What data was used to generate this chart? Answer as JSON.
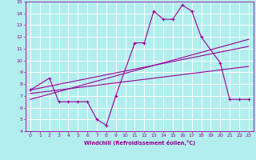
{
  "bg_color": "#b2eeee",
  "grid_color": "#ffffff",
  "line_color": "#990099",
  "xlim": [
    -0.5,
    23.5
  ],
  "ylim": [
    4,
    15
  ],
  "xticks": [
    0,
    1,
    2,
    3,
    4,
    5,
    6,
    7,
    8,
    9,
    10,
    11,
    12,
    13,
    14,
    15,
    16,
    17,
    18,
    19,
    20,
    21,
    22,
    23
  ],
  "yticks": [
    4,
    5,
    6,
    7,
    8,
    9,
    10,
    11,
    12,
    13,
    14,
    15
  ],
  "xlabel": "Windchill (Refroidissement éolien,°C)",
  "line1_x": [
    0,
    2,
    3,
    4,
    5,
    6,
    7,
    8,
    9,
    11,
    12,
    13,
    14,
    15,
    16,
    17,
    18,
    20,
    21,
    22,
    23
  ],
  "line1_y": [
    7.5,
    8.5,
    6.5,
    6.5,
    6.5,
    6.5,
    5.0,
    4.5,
    7.0,
    11.5,
    11.5,
    14.2,
    13.5,
    13.5,
    14.7,
    14.2,
    12.0,
    9.8,
    6.7,
    6.7,
    6.7
  ],
  "line2_x": [
    0,
    23
  ],
  "line2_y": [
    7.2,
    9.5
  ],
  "line3_x": [
    0,
    23
  ],
  "line3_y": [
    6.7,
    11.8
  ],
  "line4_x": [
    0,
    23
  ],
  "line4_y": [
    7.5,
    11.2
  ]
}
